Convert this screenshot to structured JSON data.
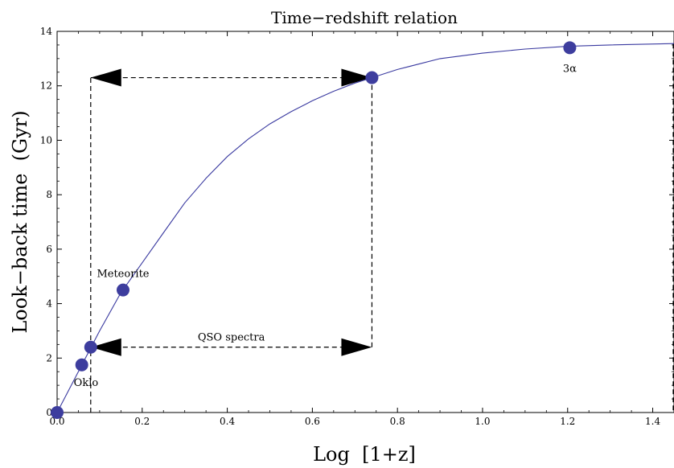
{
  "chart_data": {
    "type": "scatter",
    "title": "Time−redshift relation",
    "xlabel": "Log  [1+z]",
    "ylabel": "Look−back time  (Gyr)",
    "xlim": [
      0,
      1.45
    ],
    "ylim": [
      0,
      14
    ],
    "x_ticks": [
      0.0,
      0.2,
      0.4,
      0.6,
      0.8,
      1.0,
      1.2,
      1.4
    ],
    "x_tick_labels": [
      "0.0",
      "0.2",
      "0.4",
      "0.6",
      "0.8",
      "1.0",
      "1.2",
      "1.4"
    ],
    "y_ticks": [
      0,
      2,
      4,
      6,
      8,
      10,
      12,
      14
    ],
    "y_tick_labels": [
      "0",
      "2",
      "4",
      "6",
      "8",
      "10",
      "12",
      "14"
    ],
    "grid": false,
    "curve": {
      "x": [
        0.0,
        0.05,
        0.1,
        0.15,
        0.2,
        0.25,
        0.3,
        0.35,
        0.4,
        0.45,
        0.5,
        0.55,
        0.6,
        0.65,
        0.7,
        0.74,
        0.8,
        0.9,
        1.0,
        1.1,
        1.2,
        1.3,
        1.45
      ],
      "y": [
        0.0,
        1.5,
        3.0,
        4.4,
        5.5,
        6.6,
        7.7,
        8.6,
        9.4,
        10.05,
        10.6,
        11.05,
        11.45,
        11.8,
        12.1,
        12.3,
        12.6,
        13.0,
        13.2,
        13.35,
        13.45,
        13.5,
        13.55
      ],
      "color": "#3a3aa0"
    },
    "points": [
      {
        "x": 0.0,
        "y": 0.0,
        "label": ""
      },
      {
        "x": 0.058,
        "y": 1.75,
        "label": "Oklo"
      },
      {
        "x": 0.079,
        "y": 2.4,
        "label": ""
      },
      {
        "x": 0.155,
        "y": 4.5,
        "label": "Meteorite"
      },
      {
        "x": 0.74,
        "y": 12.3,
        "label": ""
      },
      {
        "x": 1.205,
        "y": 13.4,
        "label": "3α"
      }
    ],
    "point_color": "#3d3d9e",
    "range_annotation": {
      "label": "QSO spectra",
      "x_start": 0.079,
      "x_end": 0.74,
      "y_low": 2.4,
      "y_high": 12.3
    }
  }
}
